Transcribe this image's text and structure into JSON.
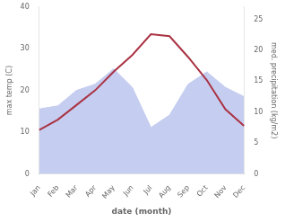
{
  "chart_data": {
    "type": "line",
    "xlabel": "date (month)",
    "ylabel": "max temp (C)",
    "y2label": "med. precipitation (kg/m2)",
    "categories": [
      "Jan",
      "Feb",
      "Mar",
      "Apr",
      "May",
      "Jun",
      "Jul",
      "Aug",
      "Sep",
      "Oct",
      "Nov",
      "Dec"
    ],
    "series": [
      {
        "type": "area",
        "axis": "y2",
        "color": "#c5cdf0",
        "values": [
          10.5,
          11.0,
          13.5,
          14.5,
          17.0,
          14.0,
          7.5,
          9.5,
          14.5,
          16.5,
          14.0,
          12.5
        ]
      },
      {
        "type": "line",
        "color": "#aa3344",
        "values": [
          10.5,
          13.0,
          16.5,
          20.0,
          24.5,
          28.5,
          33.5,
          33.0,
          28.0,
          22.5,
          15.5,
          11.5
        ]
      }
    ],
    "ylim": [
      0,
      40
    ],
    "yticks": [
      0,
      10,
      20,
      30,
      40
    ],
    "y2lim": [
      0,
      27
    ],
    "y2ticks": [
      0,
      5,
      10,
      15,
      20,
      25
    ],
    "grid": false
  }
}
